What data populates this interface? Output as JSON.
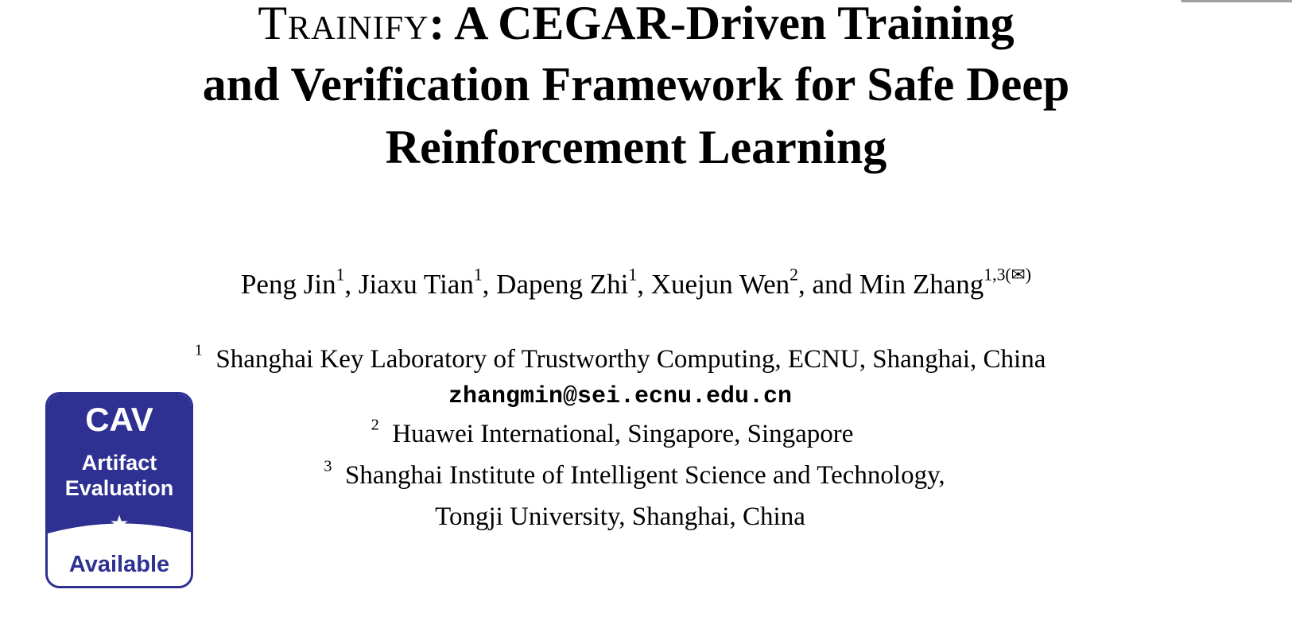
{
  "title": {
    "name": "Trainify",
    "line1_rest": ": A CEGAR-Driven Training",
    "line2": "and Verification Framework for Safe Deep",
    "line3": "Reinforcement Learning"
  },
  "authors": [
    {
      "name": "Peng Jin",
      "sup": "1"
    },
    {
      "name": "Jiaxu Tian",
      "sup": "1"
    },
    {
      "name": "Dapeng Zhi",
      "sup": "1"
    },
    {
      "name": "Xuejun Wen",
      "sup": "2"
    },
    {
      "name": "Min Zhang",
      "sup": "1,3(✉)"
    }
  ],
  "author_conj": "and",
  "affiliations": [
    {
      "num": "1",
      "text": "Shanghai Key Laboratory of Trustworthy Computing, ECNU, Shanghai, China"
    },
    {
      "email": "zhangmin@sei.ecnu.edu.cn"
    },
    {
      "num": "2",
      "text": "Huawei International, Singapore, Singapore"
    },
    {
      "num": "3",
      "text": "Shanghai Institute of Intelligent Science and Technology,",
      "text2": "Tongji University, Shanghai, China"
    }
  ],
  "badge": {
    "line1": "CAV",
    "line2": "Artifact",
    "line3": "Evaluation",
    "icon": "star-icon",
    "status": "Available",
    "color": "#2e3192"
  }
}
